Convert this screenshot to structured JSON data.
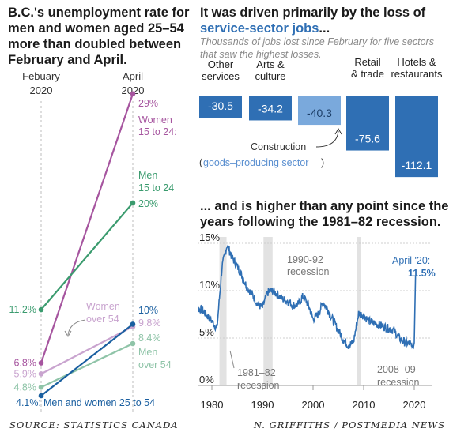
{
  "headline_left": "B.C.'s unemployment rate for men and women aged 25–54 more than doubled between February and April.",
  "headline_right_prefix": "It was driven primarily by the loss of ",
  "headline_right_highlight": "service-sector jobs",
  "headline_right_suffix": "...",
  "subhead_right": "Thousands of jobs lost since February for five sectors that saw the highest losses.",
  "headline_mid": "... and is higher than any point since the years following the 1981–82 recession.",
  "footer_left": "SOURCE: STATISTICS CANADA",
  "footer_right": "N. GRIFFITHS / POSTMEDIA NEWS",
  "colors": {
    "women_young": "#a6559f",
    "men_young": "#3a9b6e",
    "women_over54": "#c9a4cf",
    "men_over54": "#8fc4a8",
    "core": "#1a5fa0",
    "bar": "#2f6fb4",
    "bar_goods": "#7aa9dc",
    "line": "#2f6fb4",
    "recession": "#e2e2e2"
  },
  "chart_data": [
    {
      "type": "line",
      "x": [
        "Febuary\n2020",
        "April\n2020"
      ],
      "series": [
        {
          "name": "Women 15 to 24:",
          "values": [
            6.8,
            29
          ],
          "color": "#a6559f",
          "start_label": "6.8%",
          "end_label": "29%"
        },
        {
          "name": "Men 15 to 24",
          "values": [
            11.2,
            20
          ],
          "color": "#3a9b6e",
          "start_label": "11.2%",
          "end_label": "20%"
        },
        {
          "name": "Women over 54",
          "values": [
            5.9,
            9.8
          ],
          "color": "#c9a4cf",
          "start_label": "5.9%",
          "end_label": "9.8%"
        },
        {
          "name": "Men over 54",
          "values": [
            4.8,
            8.4
          ],
          "color": "#8fc4a8",
          "start_label": "4.8%",
          "end_label": "8.4%"
        },
        {
          "name": "Men and women 25 to 54",
          "values": [
            4.1,
            10
          ],
          "color": "#1a5fa0",
          "start_label": "4.1%:",
          "end_label": "10%"
        }
      ]
    },
    {
      "type": "bar",
      "categories": [
        "Other services",
        "Arts & culture",
        "Construction",
        "Retail & trade",
        "Hotels & restaurants"
      ],
      "values": [
        -30.5,
        -34.2,
        -40.3,
        -75.6,
        -112.1
      ],
      "value_labels": [
        "-30.5",
        "-34.2",
        "-40.3",
        "-75.6",
        "-112.1"
      ],
      "header_lines": [
        [
          "Other",
          "services"
        ],
        [
          "Arts &",
          "culture"
        ],
        [],
        [
          "Retail",
          "& trade"
        ],
        [
          "Hotels &",
          "restaurants"
        ]
      ],
      "highlight": "Construction",
      "annotation_prefix": "Construction",
      "annotation_paren_open": "(",
      "annotation_paren_text": "goods–producing sector",
      "annotation_paren_close": ")"
    },
    {
      "type": "line",
      "x": [
        1976,
        1977,
        1978,
        1979,
        1980,
        1981,
        1982,
        1983,
        1984,
        1985,
        1986,
        1987,
        1988,
        1989,
        1990,
        1991,
        1992,
        1993,
        1994,
        1995,
        1996,
        1997,
        1998,
        1999,
        2000,
        2001,
        2002,
        2003,
        2004,
        2005,
        2006,
        2007,
        2008,
        2009,
        2010,
        2011,
        2012,
        2013,
        2014,
        2015,
        2016,
        2017,
        2018,
        2019,
        2020
      ],
      "values": [
        8.3,
        8.1,
        8.0,
        7.4,
        6.8,
        6.0,
        12.5,
        14.8,
        13.5,
        12.6,
        11.5,
        10.3,
        9.6,
        8.6,
        8.2,
        9.8,
        10.0,
        9.6,
        9.1,
        8.9,
        8.5,
        8.5,
        9.4,
        8.6,
        7.0,
        7.5,
        8.8,
        7.9,
        6.8,
        5.8,
        4.8,
        4.2,
        4.6,
        7.6,
        7.4,
        6.8,
        6.6,
        6.4,
        6.2,
        6.0,
        5.8,
        5.0,
        4.6,
        4.4,
        11.5
      ],
      "ylim": [
        0,
        15
      ],
      "yticks": [
        "0%",
        "5%",
        "10%",
        "15%"
      ],
      "xticks": [
        "1980",
        "1990",
        "2000",
        "2010",
        "2020"
      ],
      "recessions": [
        [
          1981.5,
          1982.9
        ],
        [
          1990.2,
          1992.0
        ],
        [
          2008.7,
          2009.5
        ]
      ],
      "annotations": {
        "r1990_line1": "1990-92",
        "r1990_line2": "recession",
        "r1981_line1": "1981–82",
        "r1981_line2": "recession",
        "r2008_line1": "2008–09",
        "r2008_line2": "recession",
        "end_label": "April '20:",
        "end_value": "11.5%"
      }
    }
  ]
}
